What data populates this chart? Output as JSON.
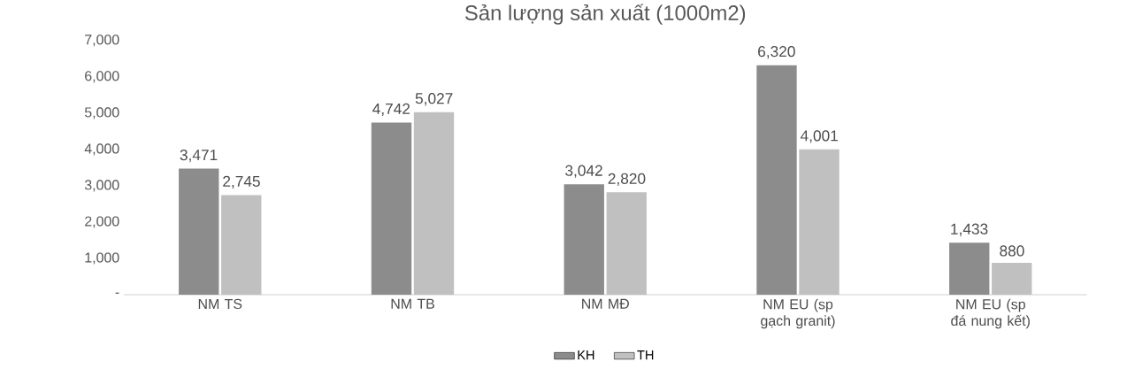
{
  "chart_data": {
    "type": "bar",
    "title": "Sản lượng sản xuất (1000m2)",
    "categories": [
      "NM TS",
      "NM TB",
      "NM MĐ",
      "NM EU (sp gạch granit)",
      "NM EU (sp đá nung kết)"
    ],
    "series": [
      {
        "name": "KH",
        "color": "#8c8c8c",
        "values": [
          3471,
          4742,
          3042,
          6320,
          1433
        ],
        "value_labels": [
          "3,471",
          "4,742",
          "3,042",
          "6,320",
          "1,433"
        ]
      },
      {
        "name": "TH",
        "color": "#c0c0c0",
        "values": [
          2745,
          5027,
          2820,
          4001,
          880
        ],
        "value_labels": [
          "2,745",
          "5,027",
          "2,820",
          "4,001",
          "880"
        ]
      }
    ],
    "ylim": [
      0,
      7000
    ],
    "yticks": [
      {
        "value": 0,
        "label": "-"
      },
      {
        "value": 1000,
        "label": "1,000"
      },
      {
        "value": 2000,
        "label": "2,000"
      },
      {
        "value": 3000,
        "label": "3,000"
      },
      {
        "value": 4000,
        "label": "4,000"
      },
      {
        "value": 5000,
        "label": "5,000"
      },
      {
        "value": 6000,
        "label": "6,000"
      },
      {
        "value": 7000,
        "label": "7,000"
      }
    ],
    "legend": "bottom"
  }
}
